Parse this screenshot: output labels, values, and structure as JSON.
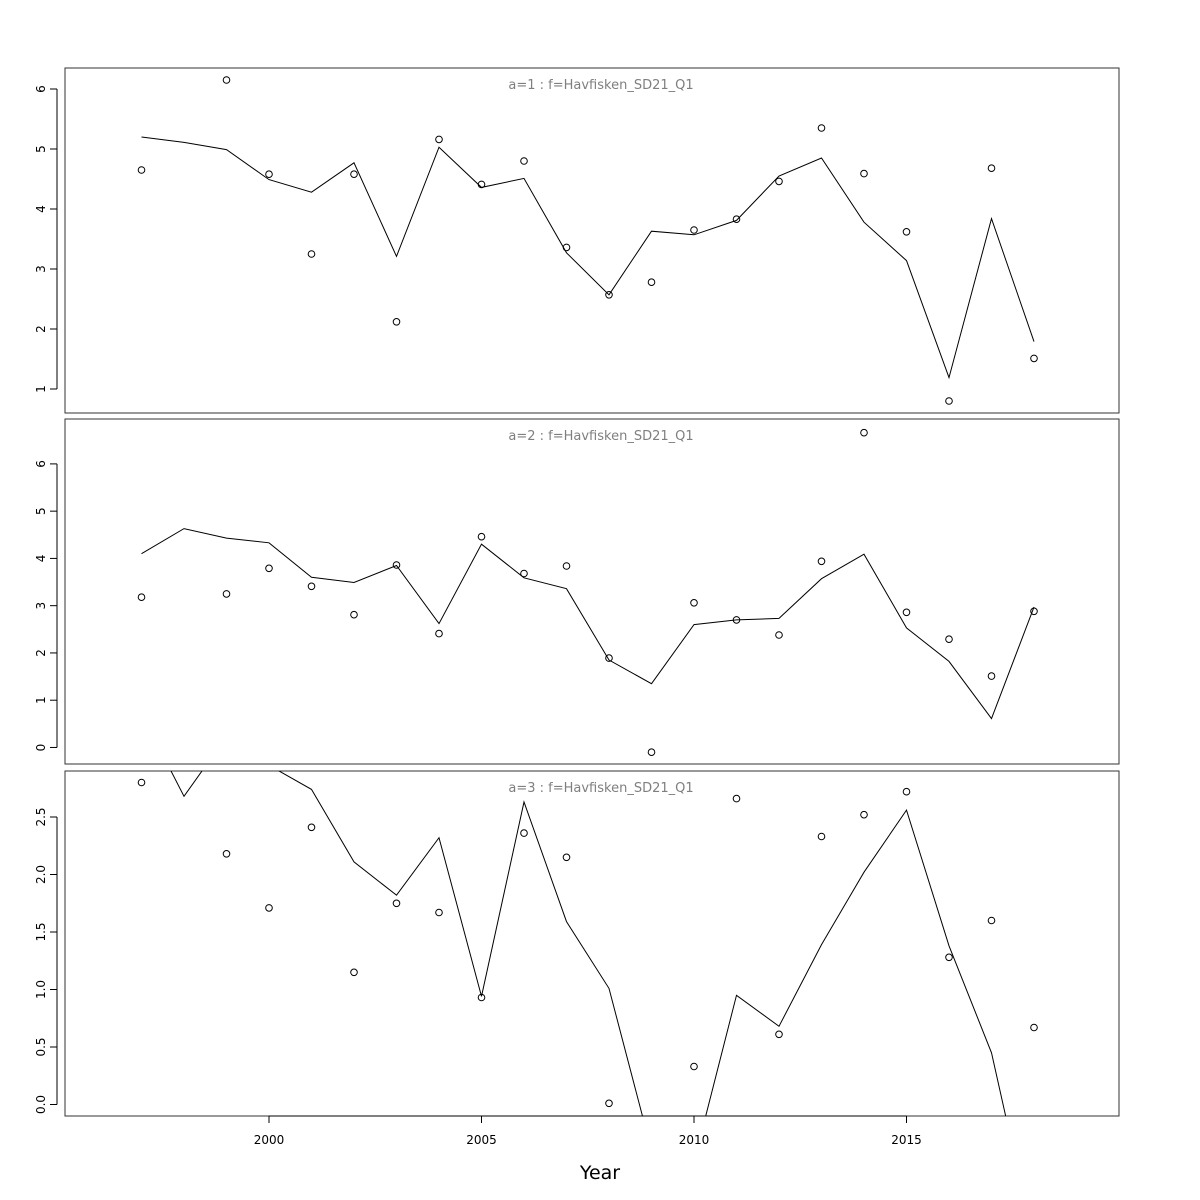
{
  "chart_data": {
    "type": "line",
    "xlabel": "Year",
    "xlim": [
      1995.2,
      2020
    ],
    "xticks": [
      2000,
      2005,
      2010,
      2015
    ],
    "panels": [
      {
        "title": "a=1  :  f=Havfisken_SD21_Q1",
        "ylim": [
          0.6,
          6.35
        ],
        "yticks": [
          1,
          2,
          3,
          4,
          5,
          6
        ],
        "ytick_labels": [
          "1",
          "2",
          "3",
          "4",
          "5",
          "6"
        ],
        "observed": {
          "x": [
            1997,
            1999,
            2000,
            2001,
            2002,
            2003,
            2004,
            2005,
            2006,
            2007,
            2008,
            2009,
            2010,
            2011,
            2012,
            2013,
            2014,
            2015,
            2016,
            2017,
            2018
          ],
          "y": [
            4.65,
            6.15,
            4.58,
            3.25,
            4.58,
            2.12,
            5.16,
            4.41,
            4.8,
            3.36,
            2.57,
            2.78,
            3.65,
            3.83,
            4.46,
            5.35,
            4.59,
            3.62,
            0.8,
            4.68,
            1.51
          ]
        },
        "fitted": {
          "x": [
            1997,
            1998,
            1999,
            2000,
            2001,
            2002,
            2003,
            2004,
            2005,
            2006,
            2007,
            2008,
            2009,
            2010,
            2011,
            2012,
            2013,
            2014,
            2015,
            2016,
            2017,
            2018
          ],
          "y": [
            5.2,
            5.11,
            4.99,
            4.49,
            4.28,
            4.77,
            3.21,
            5.03,
            4.36,
            4.51,
            3.27,
            2.57,
            3.63,
            3.57,
            3.81,
            4.55,
            4.85,
            3.78,
            3.14,
            1.19,
            3.84,
            1.79
          ]
        }
      },
      {
        "title": "a=2  :  f=Havfisken_SD21_Q1",
        "ylim": [
          -0.35,
          6.95
        ],
        "yticks": [
          0,
          1,
          2,
          3,
          4,
          5,
          6
        ],
        "ytick_labels": [
          "0",
          "1",
          "2",
          "3",
          "4",
          "5",
          "6"
        ],
        "observed": {
          "x": [
            1997,
            1999,
            2000,
            2001,
            2002,
            2003,
            2004,
            2005,
            2006,
            2007,
            2008,
            2009,
            2010,
            2011,
            2012,
            2013,
            2014,
            2015,
            2016,
            2017,
            2018
          ],
          "y": [
            3.18,
            3.25,
            3.79,
            3.41,
            2.81,
            3.86,
            2.41,
            4.46,
            3.68,
            3.84,
            1.89,
            -0.1,
            3.06,
            2.7,
            2.38,
            3.94,
            6.66,
            2.86,
            2.29,
            1.51,
            2.88
          ]
        },
        "fitted": {
          "x": [
            1997,
            1998,
            1999,
            2000,
            2001,
            2002,
            2003,
            2004,
            2005,
            2006,
            2007,
            2008,
            2009,
            2010,
            2011,
            2012,
            2013,
            2014,
            2015,
            2016,
            2017,
            2018
          ],
          "y": [
            4.1,
            4.63,
            4.43,
            4.33,
            3.6,
            3.49,
            3.85,
            2.62,
            4.3,
            3.59,
            3.36,
            1.85,
            1.35,
            2.6,
            2.7,
            2.73,
            3.57,
            4.09,
            2.53,
            1.82,
            0.61,
            2.97
          ]
        }
      },
      {
        "title": "a=3  :  f=Havfisken_SD21_Q1",
        "ylim": [
          -0.1,
          2.9
        ],
        "yticks": [
          0,
          0.5,
          1,
          1.5,
          2,
          2.5
        ],
        "ytick_labels": [
          "0.0",
          "0.5",
          "1.0",
          "1.5",
          "2.0",
          "2.5"
        ],
        "observed": {
          "x": [
            1997,
            1999,
            2000,
            2001,
            2002,
            2003,
            2004,
            2005,
            2006,
            2007,
            2008,
            2010,
            2011,
            2012,
            2013,
            2014,
            2015,
            2016,
            2017,
            2018
          ],
          "y": [
            2.8,
            2.18,
            1.71,
            2.41,
            1.15,
            1.75,
            1.67,
            0.93,
            2.36,
            2.15,
            0.01,
            0.33,
            2.66,
            0.61,
            2.33,
            2.52,
            2.72,
            1.28,
            1.6,
            0.67
          ]
        },
        "fitted": {
          "x": [
            1997,
            1998,
            1999,
            2000,
            2001,
            2002,
            2003,
            2004,
            2005,
            2006,
            2007,
            2008,
            2009,
            2010,
            2011,
            2012,
            2013,
            2014,
            2015,
            2016,
            2017,
            2018
          ],
          "y": [
            3.4,
            2.68,
            3.2,
            2.95,
            2.74,
            2.11,
            1.82,
            2.32,
            0.94,
            2.63,
            1.59,
            1.01,
            -0.4,
            -0.5,
            0.95,
            0.68,
            1.39,
            2.02,
            2.56,
            1.38,
            0.45,
            -1.2
          ]
        }
      }
    ]
  }
}
